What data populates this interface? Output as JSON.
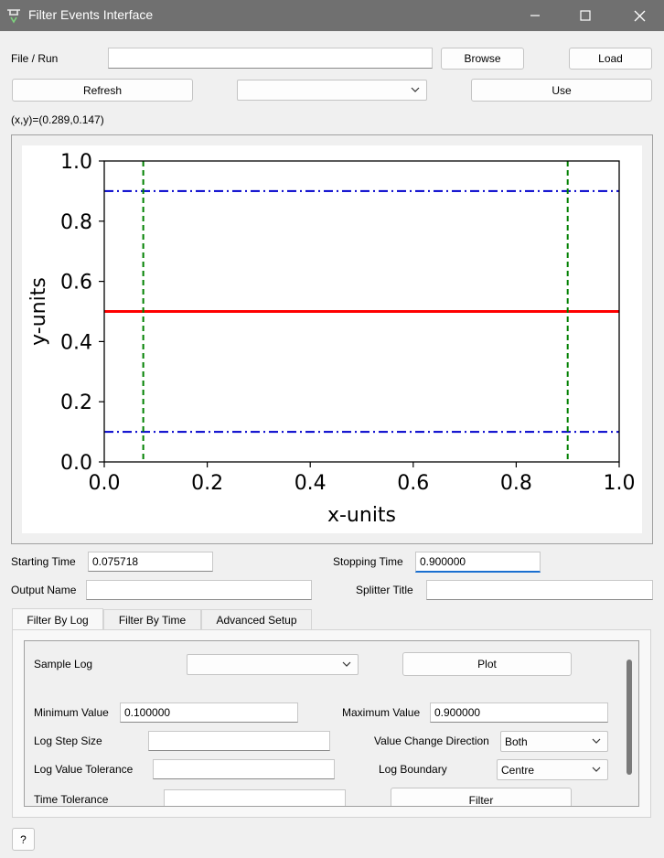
{
  "window": {
    "title": "Filter Events Interface"
  },
  "file_run": {
    "label": "File / Run",
    "value": "",
    "browse_label": "Browse",
    "load_label": "Load"
  },
  "toolbar": {
    "refresh_label": "Refresh",
    "workspace_selected": "",
    "use_label": "Use"
  },
  "coords_readout": "(x,y)=(0.289,0.147)",
  "chart_data": {
    "type": "line",
    "xlabel": "x-units",
    "ylabel": "y-units",
    "xlim": [
      0.0,
      1.0
    ],
    "ylim": [
      0.0,
      1.0
    ],
    "x_ticks": [
      "0.0",
      "0.2",
      "0.4",
      "0.6",
      "0.8",
      "1.0"
    ],
    "y_ticks": [
      "0.0",
      "0.2",
      "0.4",
      "0.6",
      "0.8",
      "1.0"
    ],
    "horizontal_lines": [
      {
        "y": 0.9,
        "color": "#0000cc",
        "style": "dashdot"
      },
      {
        "y": 0.5,
        "color": "#ff0000",
        "style": "solid"
      },
      {
        "y": 0.1,
        "color": "#0000cc",
        "style": "dashdot"
      }
    ],
    "vertical_lines": [
      {
        "x": 0.075718,
        "color": "#008000",
        "style": "dashed"
      },
      {
        "x": 0.9,
        "color": "#008000",
        "style": "dashed"
      }
    ]
  },
  "times": {
    "start_label": "Starting Time",
    "start_value": "0.075718",
    "stop_label": "Stopping Time",
    "stop_value": "0.900000"
  },
  "output": {
    "name_label": "Output Name",
    "name_value": "",
    "splitter_label": "Splitter Title",
    "splitter_value": ""
  },
  "tabs": [
    {
      "label": "Filter By Log",
      "active": true
    },
    {
      "label": "Filter By Time",
      "active": false
    },
    {
      "label": "Advanced Setup",
      "active": false
    }
  ],
  "log_panel": {
    "sample_log_label": "Sample Log",
    "sample_log_selected": "",
    "plot_label": "Plot",
    "min_label": "Minimum Value",
    "min_value": "0.100000",
    "max_label": "Maximum Value",
    "max_value": "0.900000",
    "step_label": "Log Step Size",
    "step_value": "",
    "direction_label": "Value Change Direction",
    "direction_selected": "Both",
    "tolerance_label": "Log Value Tolerance",
    "tolerance_value": "",
    "boundary_label": "Log Boundary",
    "boundary_selected": "Centre",
    "time_tol_label": "Time Tolerance",
    "time_tol_value": "",
    "filter_label": "Filter"
  },
  "help_label": "?"
}
